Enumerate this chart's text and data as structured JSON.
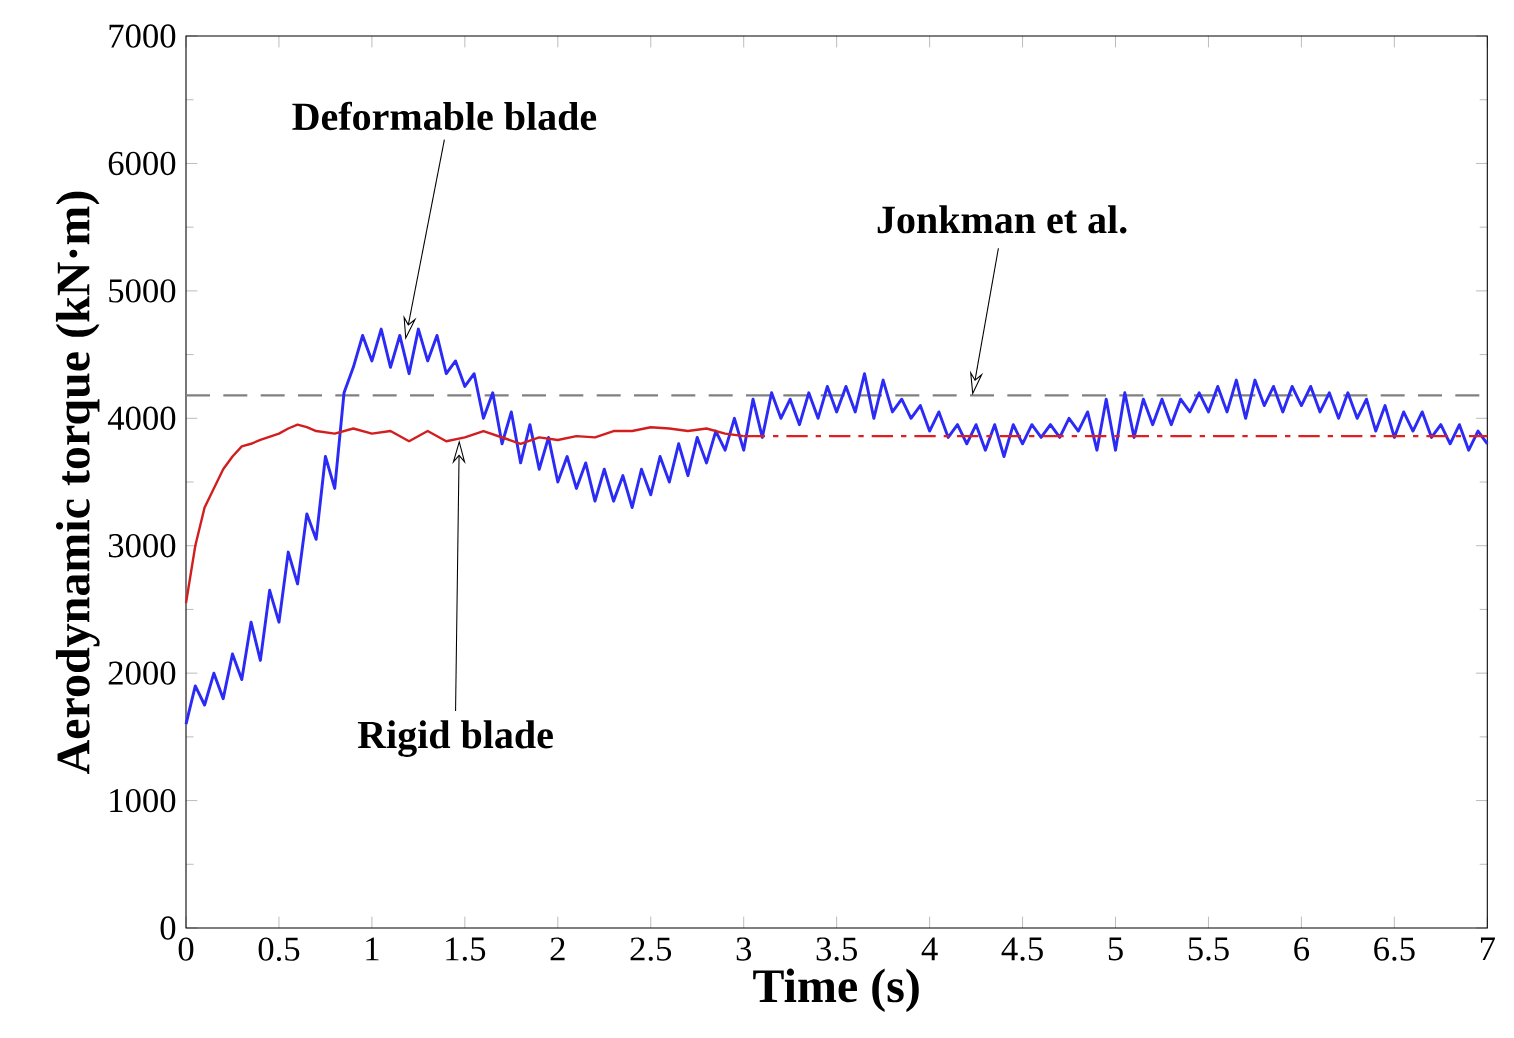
{
  "chart_data": {
    "type": "line",
    "xlabel": "Time (s)",
    "ylabel": "Aerodynamic torque (kN·m)",
    "xlim": [
      0,
      7
    ],
    "ylim": [
      0,
      7000
    ],
    "xticks": [
      0,
      0.5,
      1,
      1.5,
      2,
      2.5,
      3,
      3.5,
      4,
      4.5,
      5,
      5.5,
      6,
      6.5,
      7
    ],
    "yticks": [
      0,
      1000,
      2000,
      3000,
      4000,
      5000,
      6000,
      7000
    ],
    "series": [
      {
        "color": "#2b2bf5",
        "line_style": "solid",
        "x": [
          0,
          0.05,
          0.1,
          0.15,
          0.2,
          0.25,
          0.3,
          0.35,
          0.4,
          0.45,
          0.5,
          0.55,
          0.6,
          0.65,
          0.7,
          0.75,
          0.8,
          0.85,
          0.9,
          0.95,
          1.0,
          1.05,
          1.1,
          1.15,
          1.2,
          1.25,
          1.3,
          1.35,
          1.4,
          1.45,
          1.5,
          1.55,
          1.6,
          1.65,
          1.7,
          1.75,
          1.8,
          1.85,
          1.9,
          1.95,
          2.0,
          2.05,
          2.1,
          2.15,
          2.2,
          2.25,
          2.3,
          2.35,
          2.4,
          2.45,
          2.5,
          2.55,
          2.6,
          2.65,
          2.7,
          2.75,
          2.8,
          2.85,
          2.9,
          2.95,
          3.0,
          3.05,
          3.1,
          3.15,
          3.2,
          3.25,
          3.3,
          3.35,
          3.4,
          3.45,
          3.5,
          3.55,
          3.6,
          3.65,
          3.7,
          3.75,
          3.8,
          3.85,
          3.9,
          3.95,
          4.0,
          4.05,
          4.1,
          4.15,
          4.2,
          4.25,
          4.3,
          4.35,
          4.4,
          4.45,
          4.5,
          4.55,
          4.6,
          4.65,
          4.7,
          4.75,
          4.8,
          4.85,
          4.9,
          4.95,
          5.0,
          5.05,
          5.1,
          5.15,
          5.2,
          5.25,
          5.3,
          5.35,
          5.4,
          5.45,
          5.5,
          5.55,
          5.6,
          5.65,
          5.7,
          5.75,
          5.8,
          5.85,
          5.9,
          5.95,
          6.0,
          6.05,
          6.1,
          6.15,
          6.2,
          6.25,
          6.3,
          6.35,
          6.4,
          6.45,
          6.5,
          6.55,
          6.6,
          6.65,
          6.7,
          6.75,
          6.8,
          6.85,
          6.9,
          6.95,
          7.0
        ],
        "values": [
          1600,
          1900,
          1750,
          2000,
          1800,
          2150,
          1950,
          2400,
          2100,
          2650,
          2400,
          2950,
          2700,
          3250,
          3050,
          3700,
          3450,
          4200,
          4400,
          4650,
          4450,
          4700,
          4400,
          4650,
          4350,
          4700,
          4450,
          4650,
          4350,
          4450,
          4250,
          4350,
          4000,
          4200,
          3800,
          4050,
          3650,
          3950,
          3600,
          3850,
          3500,
          3700,
          3450,
          3650,
          3350,
          3600,
          3350,
          3550,
          3300,
          3600,
          3400,
          3700,
          3500,
          3800,
          3550,
          3850,
          3650,
          3900,
          3750,
          4000,
          3750,
          4150,
          3850,
          4200,
          4000,
          4150,
          3950,
          4200,
          4000,
          4250,
          4050,
          4250,
          4050,
          4350,
          4000,
          4300,
          4050,
          4150,
          4000,
          4100,
          3900,
          4050,
          3850,
          3950,
          3800,
          3950,
          3750,
          3950,
          3700,
          3950,
          3800,
          3950,
          3850,
          3950,
          3850,
          4000,
          3900,
          4050,
          3750,
          4150,
          3750,
          4200,
          3850,
          4150,
          3950,
          4150,
          3950,
          4150,
          4050,
          4200,
          4050,
          4250,
          4050,
          4300,
          4000,
          4300,
          4100,
          4250,
          4050,
          4250,
          4100,
          4250,
          4050,
          4200,
          4000,
          4200,
          4000,
          4150,
          3900,
          4100,
          3850,
          4050,
          3900,
          4050,
          3850,
          3950,
          3800,
          3950,
          3750,
          3900,
          3800
        ]
      },
      {
        "color": "#d21e1e",
        "line_style": "solid",
        "x": [
          0,
          0.05,
          0.1,
          0.15,
          0.2,
          0.25,
          0.3,
          0.35,
          0.4,
          0.5,
          0.55,
          0.6,
          0.65,
          0.7,
          0.8,
          0.9,
          1.0,
          1.1,
          1.2,
          1.3,
          1.4,
          1.5,
          1.6,
          1.7,
          1.8,
          1.9,
          2.0,
          2.1,
          2.2,
          2.3,
          2.4,
          2.5,
          2.6,
          2.7,
          2.8,
          2.9,
          3.0
        ],
        "values": [
          2550,
          3000,
          3300,
          3450,
          3600,
          3700,
          3780,
          3800,
          3830,
          3880,
          3920,
          3950,
          3930,
          3900,
          3880,
          3920,
          3880,
          3900,
          3820,
          3900,
          3820,
          3850,
          3900,
          3850,
          3800,
          3850,
          3830,
          3860,
          3850,
          3900,
          3900,
          3930,
          3920,
          3900,
          3920,
          3880,
          3860
        ]
      },
      {
        "color": "#e01e1e",
        "line_style": "dashdot",
        "x": [
          3,
          7
        ],
        "values": [
          3860,
          3860
        ]
      }
    ],
    "ref_lines": [
      {
        "axis": "y",
        "value": 4180,
        "label": "Jonkman et al.",
        "color": "#808080",
        "line_style": "dashed"
      }
    ],
    "annotations": [
      {
        "text": "Deformable blade",
        "x": 1.18,
        "y": 4615
      },
      {
        "text": "Rigid blade",
        "x": 1.47,
        "y": 3830
      }
    ]
  }
}
